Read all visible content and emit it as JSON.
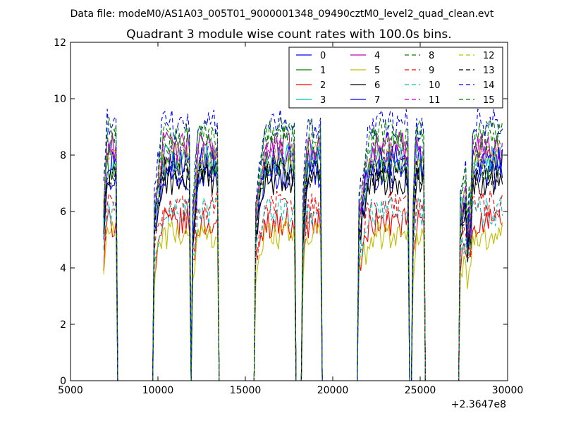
{
  "header": {
    "data_file": "Data file: modeM0/AS1A03_005T01_9000001348_09490cztM0_level2_quad_clean.evt"
  },
  "chart_data": {
    "type": "line",
    "title": "Quadrant 3 module wise count rates with 100.0s bins.",
    "xlabel": "",
    "ylabel": "",
    "xlim": [
      5000,
      30000
    ],
    "ylim": [
      0,
      12
    ],
    "x_offset_label": "+2.3647e8",
    "x_ticks": [
      5000,
      10000,
      15000,
      20000,
      25000,
      30000
    ],
    "y_ticks": [
      0,
      2,
      4,
      6,
      8,
      10,
      12
    ],
    "grid": false,
    "legend_placement": "top-right",
    "legend_columns": 4,
    "observation_windows": [
      [
        6900,
        7600
      ],
      [
        9800,
        11800
      ],
      [
        12000,
        13400
      ],
      [
        15600,
        17800
      ],
      [
        18300,
        19300
      ],
      [
        21500,
        24300
      ],
      [
        24600,
        25200
      ],
      [
        27300,
        29700
      ]
    ],
    "series": [
      {
        "name": "0",
        "color": "#0000ff",
        "dash": "solid",
        "level": 7.3,
        "dip": 1.0
      },
      {
        "name": "1",
        "color": "#008000",
        "dash": "solid",
        "level": 7.6,
        "dip": 1.1
      },
      {
        "name": "2",
        "color": "#ff0000",
        "dash": "solid",
        "level": 5.6,
        "dip": 0.6
      },
      {
        "name": "3",
        "color": "#00bfbf",
        "dash": "solid",
        "level": 7.9,
        "dip": 1.0
      },
      {
        "name": "4",
        "color": "#bf00bf",
        "dash": "solid",
        "level": 8.3,
        "dip": 1.2
      },
      {
        "name": "5",
        "color": "#bfbf00",
        "dash": "solid",
        "level": 5.2,
        "dip": 0.6
      },
      {
        "name": "6",
        "color": "#000000",
        "dash": "solid",
        "level": 7.1,
        "dip": 1.0
      },
      {
        "name": "7",
        "color": "#0000ff",
        "dash": "solid",
        "level": 7.8,
        "dip": 1.1
      },
      {
        "name": "8",
        "color": "#008000",
        "dash": "dashed",
        "level": 8.5,
        "dip": 1.2
      },
      {
        "name": "9",
        "color": "#ff0000",
        "dash": "dashed",
        "level": 6.2,
        "dip": 0.7
      },
      {
        "name": "10",
        "color": "#00bfbf",
        "dash": "dashed",
        "level": 6.0,
        "dip": 0.8
      },
      {
        "name": "11",
        "color": "#bf00bf",
        "dash": "dashed",
        "level": 8.1,
        "dip": 1.1
      },
      {
        "name": "12",
        "color": "#bfbf00",
        "dash": "dashed",
        "level": 7.9,
        "dip": 1.0
      },
      {
        "name": "13",
        "color": "#000000",
        "dash": "dashed",
        "level": 7.4,
        "dip": 1.0
      },
      {
        "name": "14",
        "color": "#0000ff",
        "dash": "dashed",
        "level": 9.1,
        "dip": 1.3
      },
      {
        "name": "15",
        "color": "#008000",
        "dash": "dashed",
        "level": 8.8,
        "dip": 1.2
      }
    ]
  }
}
